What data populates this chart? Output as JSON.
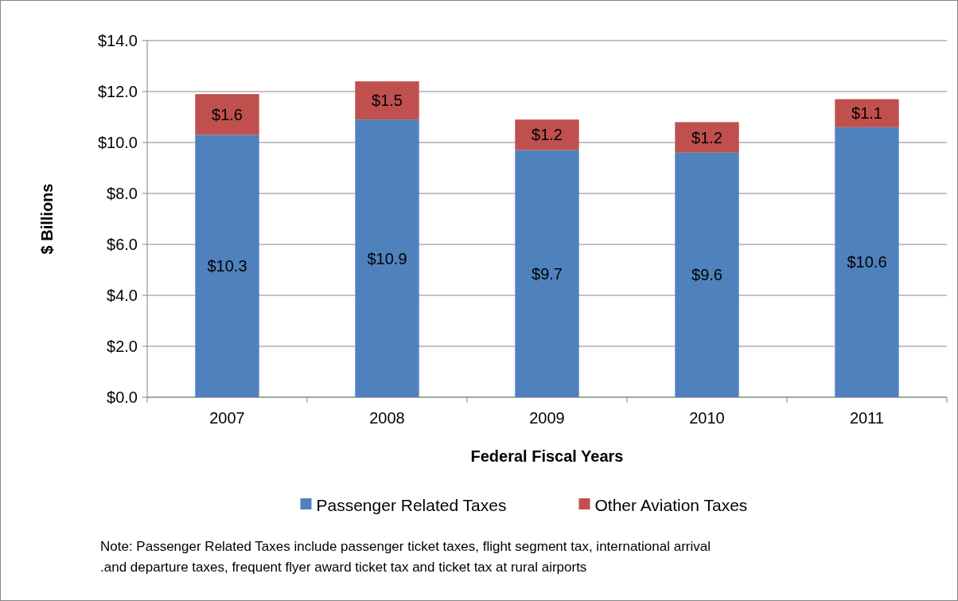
{
  "chart_data": {
    "type": "bar",
    "stacked": true,
    "xlabel": "Federal Fiscal Years",
    "ylabel": "$ Billions",
    "categories": [
      "2007",
      "2008",
      "2009",
      "2010",
      "2011"
    ],
    "series": [
      {
        "name": "Passenger Related Taxes",
        "color": "#4f81bd",
        "values": [
          10.3,
          10.9,
          9.7,
          9.6,
          10.6
        ],
        "value_labels": [
          "$10.3",
          "$10.9",
          "$9.7",
          "$9.6",
          "$10.6"
        ]
      },
      {
        "name": "Other Aviation Taxes",
        "color": "#c0504d",
        "values": [
          1.6,
          1.5,
          1.2,
          1.2,
          1.1
        ],
        "value_labels": [
          "$1.6",
          "$1.5",
          "$1.2",
          "$1.2",
          "$1.1"
        ]
      }
    ],
    "ylim": [
      0,
      14
    ],
    "yticks": [
      {
        "value": 0,
        "label": "$0.0"
      },
      {
        "value": 2,
        "label": "$2.0"
      },
      {
        "value": 4,
        "label": "$4.0"
      },
      {
        "value": 6,
        "label": "$6.0"
      },
      {
        "value": 8,
        "label": "$8.0"
      },
      {
        "value": 10,
        "label": "$10.0"
      },
      {
        "value": 12,
        "label": "$12.0"
      },
      {
        "value": 14,
        "label": "$14.0"
      }
    ],
    "grid": "y",
    "legend": "bottom",
    "annotations": [
      "Note:  Passenger Related Taxes include passenger ticket taxes, flight segment tax, international arrival\n.and departure taxes, frequent flyer award ticket tax and ticket tax at rural airports"
    ]
  }
}
